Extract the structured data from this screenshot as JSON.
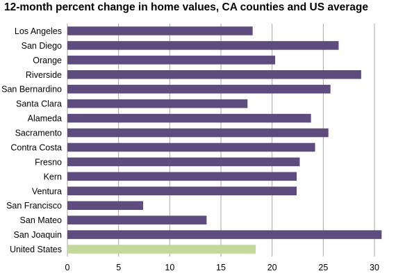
{
  "chart_data": {
    "type": "bar",
    "orientation": "horizontal",
    "title": "12-month percent change in home values, CA counties and US average",
    "xlabel": "",
    "ylabel": "",
    "categories": [
      "Los Angeles",
      "San Diego",
      "Orange",
      "Riverside",
      "San Bernardino",
      "Santa Clara",
      "Alameda",
      "Sacramento",
      "Contra Costa",
      "Fresno",
      "Kern",
      "Ventura",
      "San Francisco",
      "San Mateo",
      "San Joaquin",
      "United States"
    ],
    "values": [
      18.1,
      26.5,
      20.3,
      28.7,
      25.7,
      17.6,
      23.8,
      25.5,
      24.2,
      22.7,
      22.4,
      22.4,
      7.4,
      13.6,
      30.7,
      18.4
    ],
    "xlim": [
      0,
      30
    ],
    "xticks": [
      0,
      5,
      10,
      15,
      20,
      25,
      30
    ],
    "grid": "vertical",
    "legend": "none",
    "colors": {
      "county_bar": "#5f4c7f",
      "us_bar": "#c3d89b",
      "gridline": "#a6a6a6"
    }
  }
}
